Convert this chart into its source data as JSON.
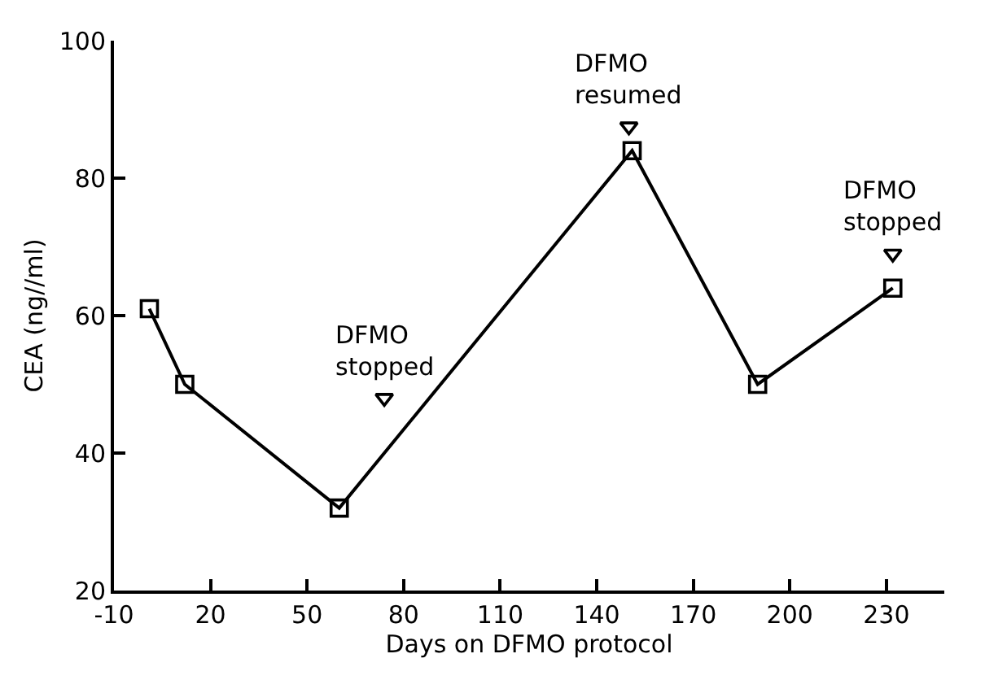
{
  "chart_data": {
    "type": "line",
    "xlabel": "Days on DFMO protocol",
    "ylabel": "CEA (ng//ml)",
    "xlim": [
      -10,
      248
    ],
    "xticks": [
      -10,
      20,
      50,
      80,
      110,
      140,
      170,
      200,
      230
    ],
    "ylim": [
      20,
      100
    ],
    "yticks": [
      20,
      40,
      60,
      80,
      100
    ],
    "series": [
      {
        "marker": "square",
        "color": "#000000",
        "x": [
          1,
          12,
          60,
          151,
          190,
          232
        ],
        "values": [
          61,
          50,
          32,
          84,
          50,
          64
        ]
      },
      {
        "type": "scatter",
        "marker": "triangle",
        "color": "#000000",
        "x": [
          74,
          150,
          232
        ],
        "values": [
          48,
          87.5,
          69
        ]
      }
    ],
    "annotations": [
      {
        "text": "DFMO\nstopped",
        "x": 74,
        "y": 48
      },
      {
        "text": "DFMO\nresumed",
        "x": 150,
        "y": 87.5
      },
      {
        "text": "DFMO\nstopped",
        "x": 232,
        "y": 69
      }
    ]
  }
}
